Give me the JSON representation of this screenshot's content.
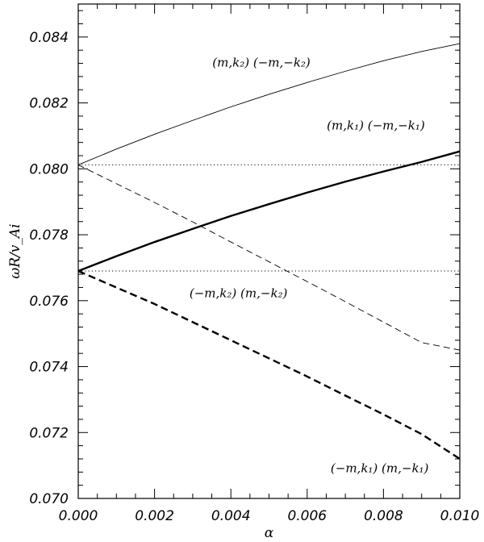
{
  "chart_data": {
    "type": "line",
    "xlabel": "α",
    "ylabel": "ωR/v_Ai",
    "xlim": [
      0.0,
      0.01
    ],
    "ylim": [
      0.07,
      0.085
    ],
    "x_ticks": [
      0.0,
      0.002,
      0.004,
      0.006,
      0.008,
      0.01
    ],
    "x_tick_labels": [
      "0.000",
      "0.002",
      "0.004",
      "0.006",
      "0.008",
      "0.010"
    ],
    "y_ticks": [
      0.07,
      0.072,
      0.074,
      0.076,
      0.078,
      0.08,
      0.082,
      0.084
    ],
    "y_tick_labels": [
      "0.070",
      "0.072",
      "0.074",
      "0.076",
      "0.078",
      "0.080",
      "0.082",
      "0.084"
    ],
    "grid": false,
    "series": [
      {
        "style": "thin-solid",
        "x": [
          0.0,
          0.001,
          0.002,
          0.003,
          0.004,
          0.005,
          0.006,
          0.007,
          0.008,
          0.009,
          0.01
        ],
        "y": [
          0.08012,
          0.0806,
          0.08105,
          0.08147,
          0.08188,
          0.08226,
          0.08262,
          0.08296,
          0.08328,
          0.08356,
          0.0838
        ]
      },
      {
        "style": "thick-solid",
        "x": [
          0.0,
          0.001,
          0.002,
          0.003,
          0.004,
          0.005,
          0.006,
          0.007,
          0.008,
          0.009,
          0.01
        ],
        "y": [
          0.0769,
          0.07735,
          0.07778,
          0.07818,
          0.07857,
          0.07893,
          0.07928,
          0.07961,
          0.07992,
          0.08021,
          0.08053
        ]
      },
      {
        "style": "thin-dashed",
        "x": [
          0.0,
          0.001,
          0.002,
          0.003,
          0.004,
          0.005,
          0.006,
          0.007,
          0.008,
          0.009,
          0.01
        ],
        "y": [
          0.08012,
          0.07955,
          0.07898,
          0.07839,
          0.07778,
          0.07718,
          0.07658,
          0.07597,
          0.07535,
          0.07473,
          0.0745
        ]
      },
      {
        "style": "thick-dashed",
        "x": [
          0.0,
          0.001,
          0.002,
          0.003,
          0.004,
          0.005,
          0.006,
          0.007,
          0.008,
          0.009,
          0.01
        ],
        "y": [
          0.0769,
          0.0764,
          0.0759,
          0.07535,
          0.0748,
          0.07425,
          0.0737,
          0.07312,
          0.07255,
          0.07195,
          0.0712
        ]
      },
      {
        "style": "dotted",
        "x": [
          0.0,
          0.01
        ],
        "y": [
          0.08012,
          0.08012
        ]
      },
      {
        "style": "dotted",
        "x": [
          0.0,
          0.01
        ],
        "y": [
          0.0769,
          0.0769
        ]
      }
    ],
    "annotations": [
      {
        "text": "(m,k₂)   (−m,−k₂)",
        "x": 0.0048,
        "y": 0.0831
      },
      {
        "text": "(m,k₁)   (−m,−k₁)",
        "x": 0.0078,
        "y": 0.0812
      },
      {
        "text": "(−m,k₂)   (m,−k₂)",
        "x": 0.0042,
        "y": 0.0761
      },
      {
        "text": "(−m,k₁)   (m,−k₁)",
        "x": 0.0079,
        "y": 0.0708
      }
    ]
  }
}
